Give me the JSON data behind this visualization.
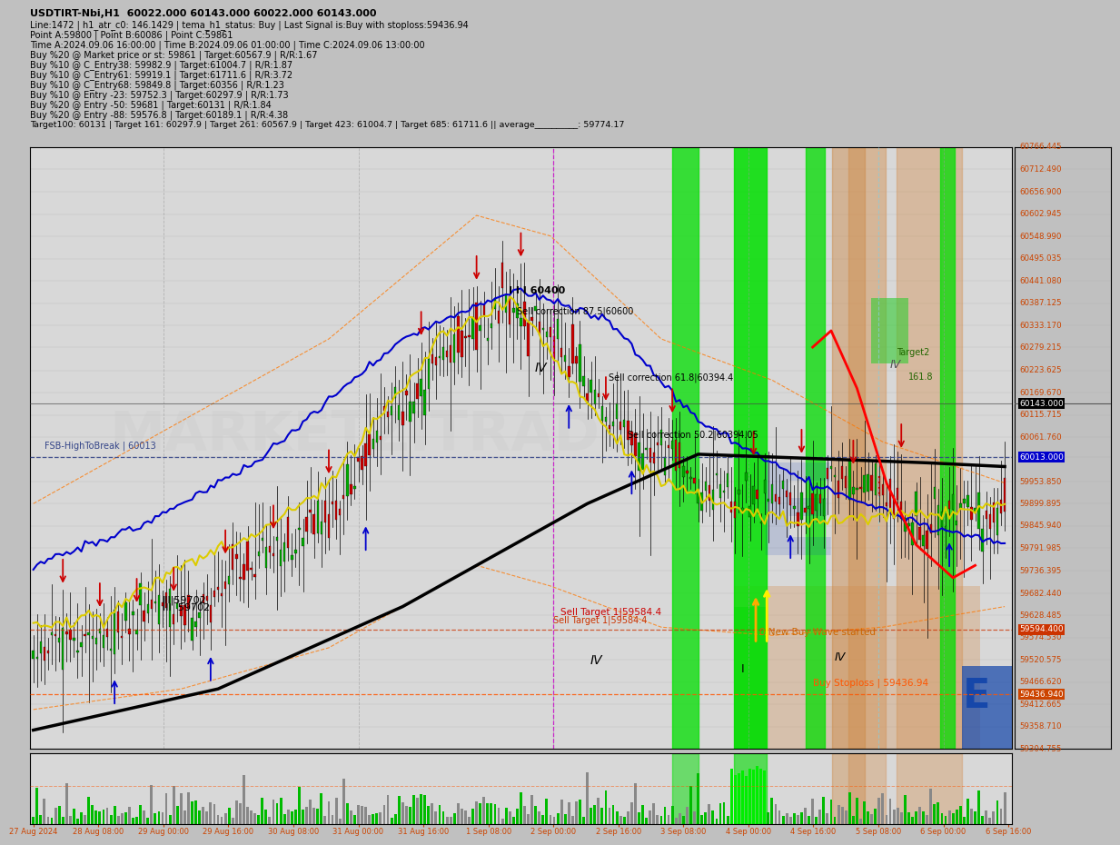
{
  "title": "USDTIRT-Nbi,H1  60022.000 60143.000 60022.000 60143.000",
  "line1": "Line:1472 | h1_atr_c0: 146.1429 | tema_h1_status: Buy | Last Signal is:Buy with stoploss:59436.94",
  "line2": "Point A:59800 | Point B:60086 | Point C:59861",
  "line3": "Time A:2024.09.06 16:00:00 | Time B:2024.09.06 01:00:00 | Time C:2024.09.06 13:00:00",
  "line4": "Buy %20 @ Market price or st: 59861 | Target:60567.9 | R/R:1.67",
  "line5": "Buy %10 @ C_Entry38: 59982.9 | Target:61004.7 | R/R:1.87",
  "line6": "Buy %10 @ C_Entry61: 59919.1 | Target:61711.6 | R/R:3.72",
  "line7": "Buy %10 @ C_Entry68: 59849.8 | Target:60356 | R/R:1.23",
  "line8": "Buy %10 @ Entry -23: 59752.3 | Target:60297.9 | R/R:1.73",
  "line9": "Buy %20 @ Entry -50: 59681 | Target:60131 | R/R:1.84",
  "line10": "Buy %20 @ Entry -88: 59576.8 | Target:60189.1 | R/R:4.38",
  "line11": "Target100: 60131 | Target 161: 60297.9 | Target 261: 60567.9 | Target 423: 61004.7 | Target 685: 61711.6 || average__________: 59774.17",
  "y_min": 59304.755,
  "y_max": 60766.445,
  "price_current": 60143.0,
  "price_fsb": 60013.0,
  "price_stoploss": 59436.94,
  "price_sell_target": 59594.4,
  "ytick_vals": [
    59304.755,
    59358.71,
    59412.665,
    59466.62,
    59520.575,
    59574.53,
    59628.485,
    59682.44,
    59736.395,
    59791.985,
    59845.94,
    59899.895,
    59953.85,
    60013.0,
    60061.76,
    60115.715,
    60169.67,
    60223.625,
    60279.215,
    60333.17,
    60387.125,
    60441.08,
    60495.035,
    60548.99,
    60602.945,
    60656.9,
    60712.49,
    60766.445
  ],
  "x_labels": [
    "27 Aug 2024",
    "28 Aug 08:00",
    "29 Aug 00:00",
    "29 Aug 16:00",
    "30 Aug 08:00",
    "31 Aug 00:00",
    "31 Aug 16:00",
    "1 Sep 08:00",
    "2 Sep 00:00",
    "2 Sep 16:00",
    "3 Sep 08:00",
    "4 Sep 00:00",
    "4 Sep 16:00",
    "5 Sep 08:00",
    "6 Sep 00:00",
    "6 Sep 16:00"
  ],
  "watermark": "MARKETZITRADE"
}
